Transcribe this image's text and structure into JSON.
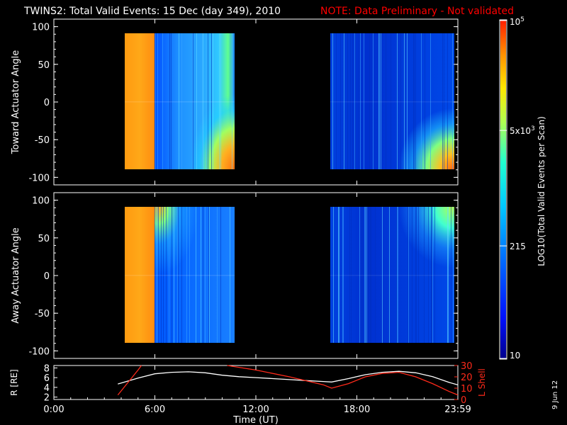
{
  "header": {
    "title": "TWINS2: Total Valid Events: 15 Dec (day 349), 2010",
    "note": "NOTE: Data Preliminary - Not validated"
  },
  "colors": {
    "background": "#000000",
    "axes": "#ffffff",
    "note": "#ff0000",
    "radius_line": "#ffffff",
    "lshell_line": "#ff2a1a"
  },
  "colorbar": {
    "label": "LOG10(Total Valid Events per Scan)",
    "ticks": [
      "10",
      "215",
      "5x10^3",
      "10^5"
    ],
    "min": 10,
    "max": 100000,
    "scale": "log",
    "colormap": [
      "#00008c",
      "#0010ff",
      "#0070ff",
      "#00c8ff",
      "#20ffd0",
      "#b0ff50",
      "#ffe800",
      "#ff9000",
      "#ff2000"
    ]
  },
  "footer_date": "9 Jun 12",
  "chart_data": [
    {
      "type": "heatmap",
      "name": "toward",
      "ylabel": "Toward Actuator Angle",
      "xlim": [
        0,
        24
      ],
      "ylim": [
        -110,
        110
      ],
      "yticks": [
        "100",
        "50",
        "0",
        "-50",
        "-100"
      ],
      "ytick_values": [
        100,
        50,
        0,
        -50,
        -100
      ],
      "data_angle_range": [
        -88,
        90
      ],
      "blocks": [
        {
          "start_hour": 3.8,
          "end_hour": 5.7,
          "log_level": 4.6,
          "description": "saturated"
        },
        {
          "start_hour": 5.7,
          "end_hour": 10.5,
          "log_level": 2.1,
          "corner_enhancement": "low-angle, late"
        },
        {
          "start_hour": 16.5,
          "end_hour": 24.0,
          "log_level": 1.7,
          "corner_enhancement": "low-angle, late"
        }
      ]
    },
    {
      "type": "heatmap",
      "name": "away",
      "ylabel": "Away Actuator Angle",
      "xlim": [
        0,
        24
      ],
      "ylim": [
        -110,
        110
      ],
      "yticks": [
        "100",
        "50",
        "0",
        "-50",
        "-100"
      ],
      "ytick_values": [
        100,
        50,
        0,
        -50,
        -100
      ],
      "data_angle_range": [
        -88,
        90
      ],
      "blocks": [
        {
          "start_hour": 3.8,
          "end_hour": 5.7,
          "log_level": 4.6,
          "description": "saturated"
        },
        {
          "start_hour": 5.7,
          "end_hour": 10.5,
          "log_level": 2.0,
          "corner_enhancement": "high-angle, early"
        },
        {
          "start_hour": 16.5,
          "end_hour": 24.0,
          "log_level": 1.6,
          "corner_enhancement": "high-angle, late"
        }
      ]
    },
    {
      "type": "line",
      "name": "orbit",
      "xlabel": "Time (UT)",
      "xticks": [
        "0:00",
        "6:00",
        "12:00",
        "18:00",
        "23:59"
      ],
      "xtick_values": [
        0,
        6,
        12,
        18,
        24
      ],
      "xlim": [
        0,
        24
      ],
      "left_axis": {
        "label": "R [RE]",
        "ylim": [
          1.5,
          8.5
        ],
        "yticks": [
          "2",
          "4",
          "6",
          "8"
        ],
        "ytick_values": [
          2,
          4,
          6,
          8
        ]
      },
      "right_axis": {
        "label": "L Shell",
        "ylim": [
          0,
          30
        ],
        "yticks": [
          "0",
          "10",
          "20",
          "30"
        ],
        "ytick_values": [
          0,
          10,
          20,
          30
        ]
      },
      "series": [
        {
          "axis": "left",
          "color": "#ffffff",
          "x": [
            3.8,
            5.0,
            6.0,
            7.0,
            8.0,
            9.0,
            10.0,
            11.0,
            12.0,
            13.0,
            14.0,
            15.0,
            16.0,
            16.5,
            17.5,
            18.5,
            19.5,
            20.5,
            21.5,
            22.5,
            23.5,
            24.0
          ],
          "y": [
            4.7,
            5.9,
            6.8,
            7.1,
            7.2,
            7.0,
            6.5,
            6.2,
            6.0,
            5.8,
            5.6,
            5.4,
            5.2,
            5.1,
            5.8,
            6.6,
            7.1,
            7.3,
            7.0,
            6.2,
            5.0,
            4.5
          ]
        },
        {
          "axis": "right",
          "color": "#ff2a1a",
          "x": [
            3.8,
            5.0,
            5.2
          ],
          "y": [
            4,
            26,
            30
          ]
        },
        {
          "axis": "right",
          "color": "#ff2a1a",
          "x": [
            10.3,
            12.0,
            14.0,
            16.0,
            16.5,
            17.5,
            18.5,
            19.5,
            20.5,
            21.5,
            22.5,
            23.5,
            24.0
          ],
          "y": [
            30,
            26,
            20,
            13,
            10,
            14,
            20,
            23,
            24,
            20,
            14,
            7,
            4
          ]
        }
      ]
    }
  ]
}
